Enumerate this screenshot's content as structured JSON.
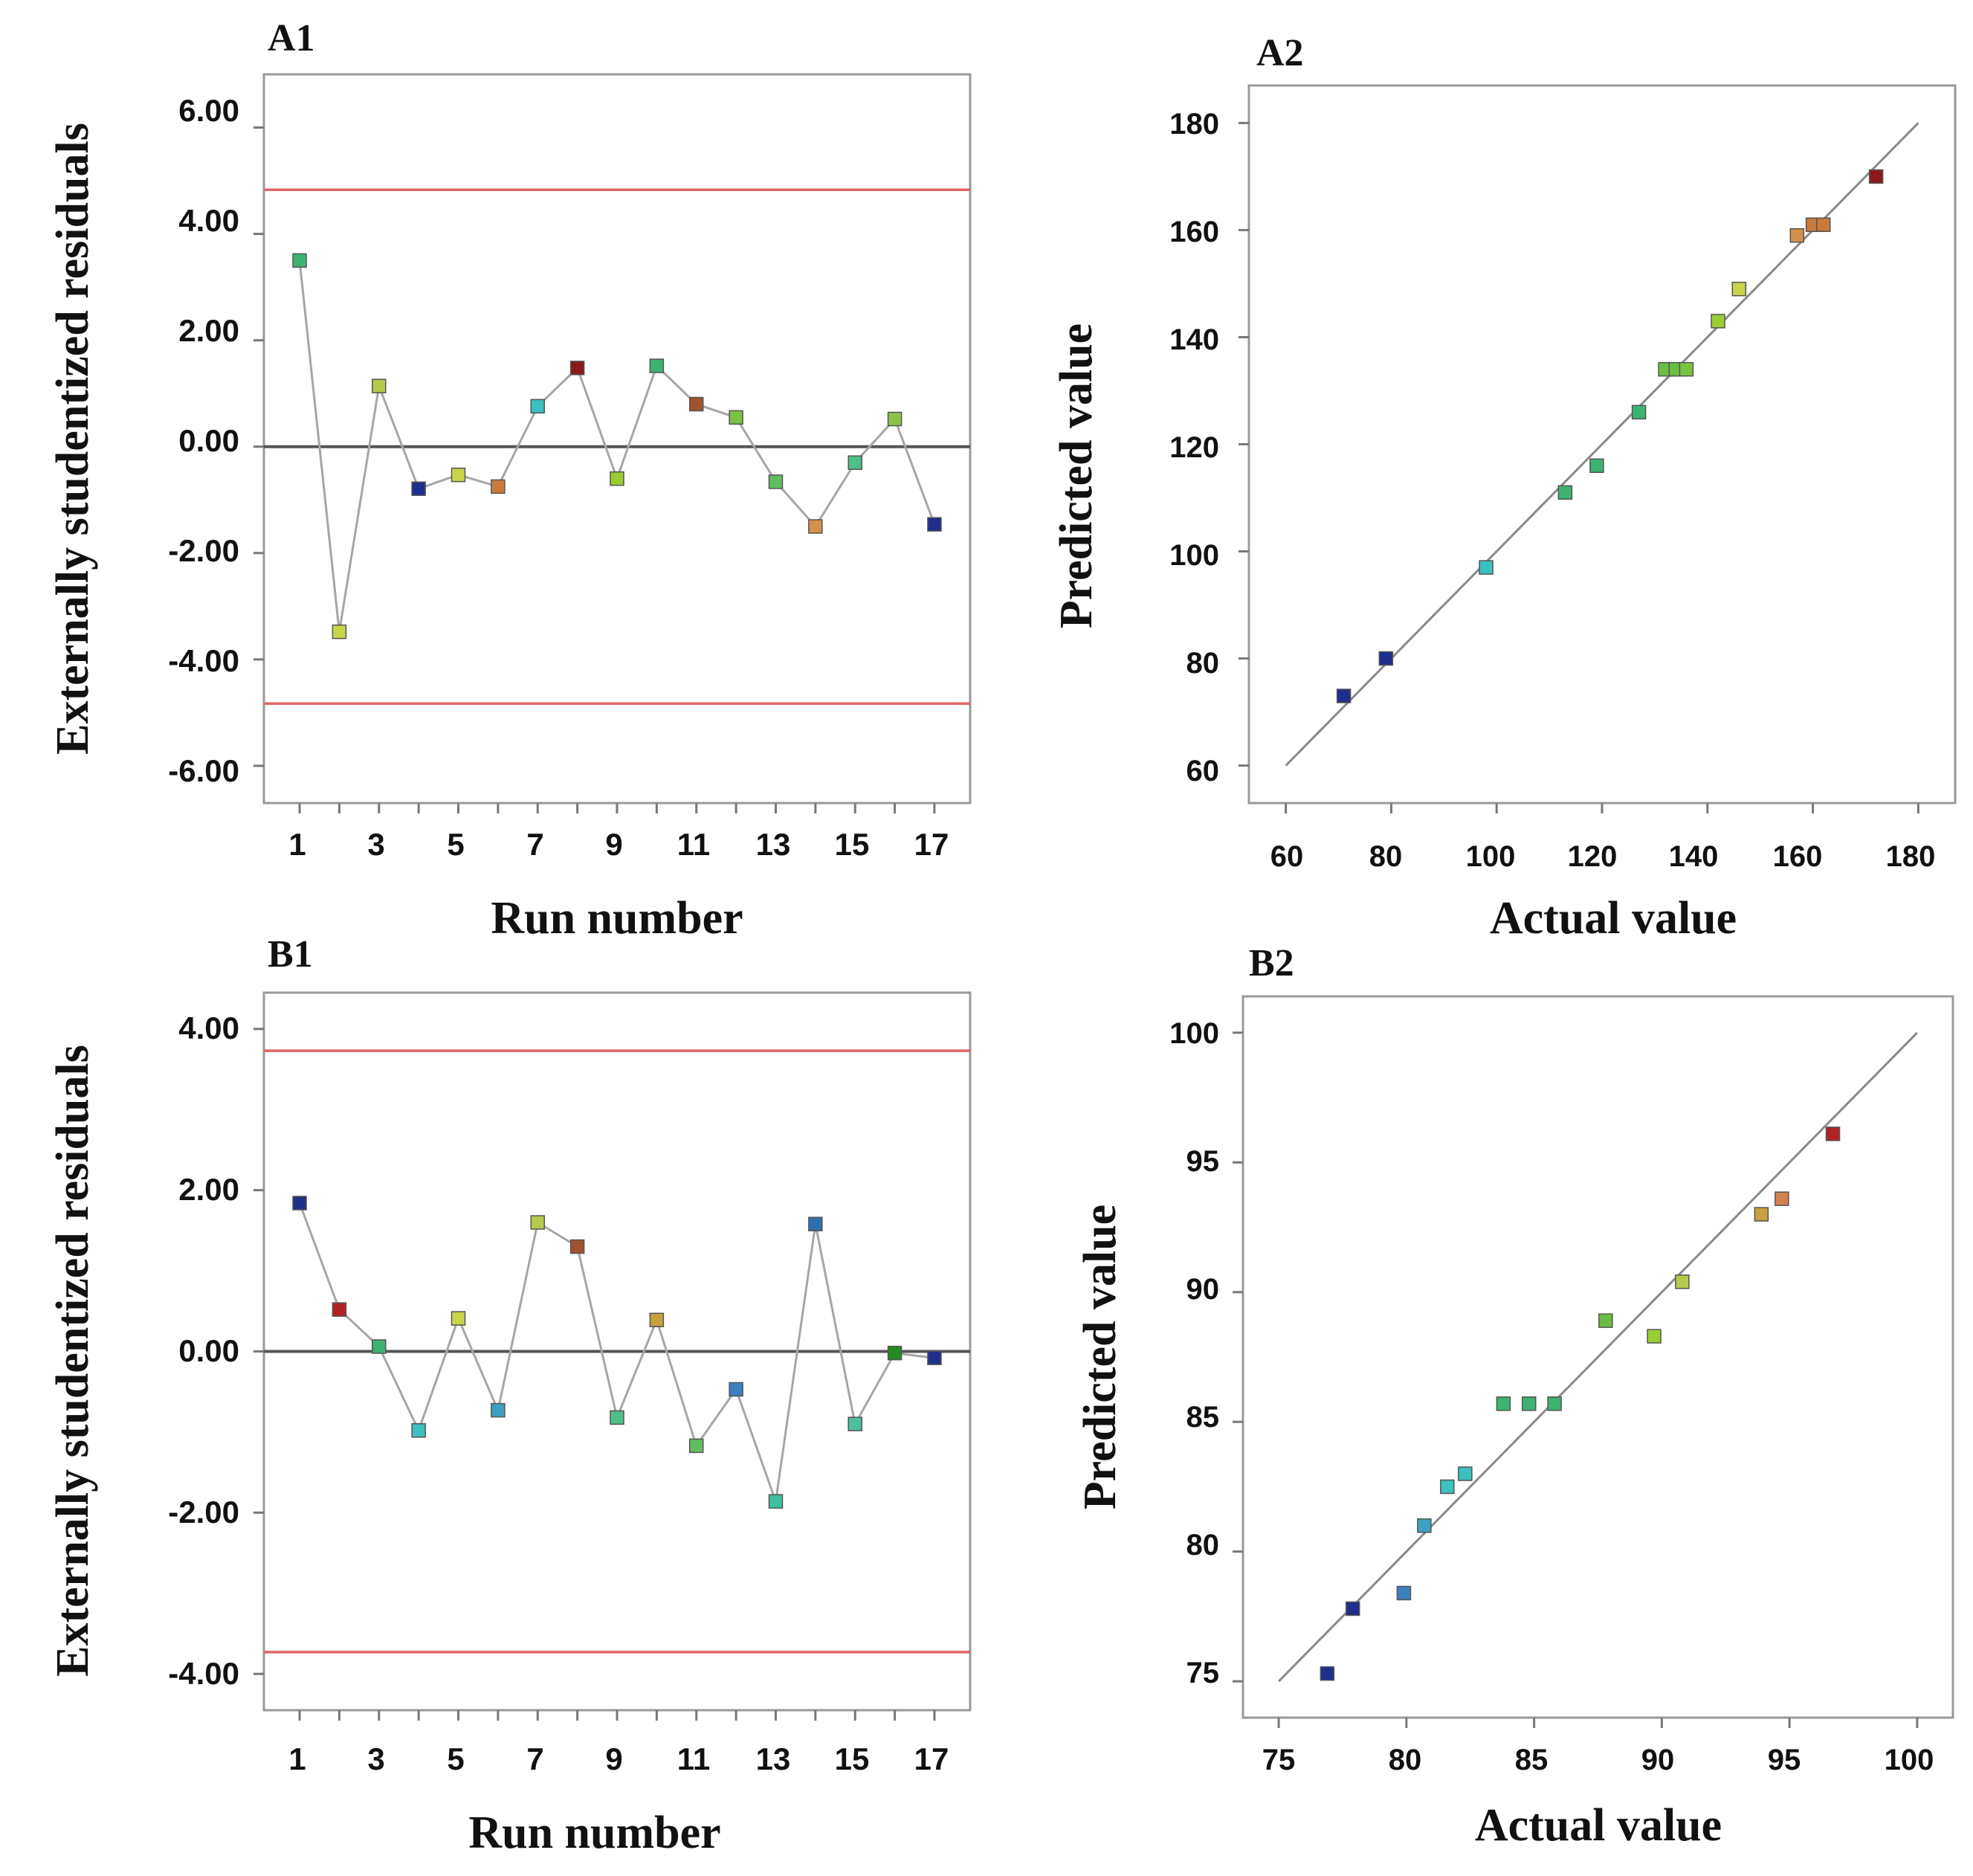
{
  "chart_data": [
    {
      "id": "A1",
      "panel_label": "A1",
      "type": "line",
      "xlabel": "Run number",
      "ylabel": "Externally studentized residuals",
      "x_tick_labels": [
        "1",
        "3",
        "5",
        "7",
        "9",
        "11",
        "13",
        "15",
        "17"
      ],
      "y_tick_labels": [
        "6.00",
        "4.00",
        "2.00",
        "0.00",
        "-2.00",
        "-4.00",
        "-6.00"
      ],
      "y_ticks": [
        6,
        4,
        2,
        0,
        -2,
        -4,
        -6
      ],
      "xlim": [
        0.1,
        17.9
      ],
      "ylim": [
        -6.7,
        7.0
      ],
      "reference_lines": [
        {
          "y": 4.83,
          "color": "#e06666"
        },
        {
          "y": -4.83,
          "color": "#e06666"
        },
        {
          "y": 0,
          "color": "#555555"
        }
      ],
      "line_color": "#a6a6a6",
      "x": [
        1,
        2,
        3,
        4,
        5,
        6,
        7,
        8,
        9,
        10,
        11,
        12,
        13,
        14,
        15,
        16,
        17
      ],
      "y": [
        3.5,
        -3.48,
        1.14,
        -0.79,
        -0.53,
        -0.75,
        0.76,
        1.48,
        -0.6,
        1.52,
        0.8,
        0.55,
        -0.66,
        -1.5,
        -0.3,
        0.52,
        -1.46
      ],
      "point_colors": [
        "#3cb371",
        "#c8d44a",
        "#b7c94a",
        "#1f2f8c",
        "#c8d44a",
        "#c87a3c",
        "#3cc0c0",
        "#8b1a1a",
        "#9acd32",
        "#3cb371",
        "#a0522d",
        "#7cc242",
        "#5fbf5f",
        "#d4914a",
        "#4fbf8a",
        "#8bc34a",
        "#1f2f8c"
      ]
    },
    {
      "id": "A2",
      "panel_label": "A2",
      "type": "scatter",
      "xlabel": "Actual value",
      "ylabel": "Predicted value",
      "x_tick_labels": [
        "60",
        "80",
        "100",
        "120",
        "140",
        "160",
        "180"
      ],
      "x_ticks": [
        60,
        80,
        100,
        120,
        140,
        160,
        180
      ],
      "y_tick_labels": [
        "180",
        "160",
        "140",
        "120",
        "100",
        "80",
        "60"
      ],
      "y_ticks": [
        180,
        160,
        140,
        120,
        100,
        80,
        60
      ],
      "xlim": [
        53,
        187
      ],
      "ylim": [
        53,
        187
      ],
      "diagonal": [
        [
          60,
          60
        ],
        [
          180,
          180
        ]
      ],
      "x": [
        71,
        79,
        98,
        113,
        119,
        127,
        132,
        134,
        136,
        142,
        146,
        157,
        160,
        162,
        172
      ],
      "y": [
        73,
        80,
        97,
        111,
        116,
        126,
        134,
        134,
        134,
        143,
        149,
        159,
        161,
        161,
        170
      ],
      "point_colors": [
        "#1f2f8c",
        "#1f2f8c",
        "#3cc0c0",
        "#3cb371",
        "#3cb371",
        "#3cb371",
        "#6abf40",
        "#6abf40",
        "#7cc242",
        "#9acd32",
        "#c8d44a",
        "#d4914a",
        "#c87a3c",
        "#c87a3c",
        "#8b1a1a"
      ]
    },
    {
      "id": "B1",
      "panel_label": "B1",
      "type": "line",
      "xlabel": "Run number",
      "ylabel": "Externally studentized residuals",
      "x_tick_labels": [
        "1",
        "3",
        "5",
        "7",
        "9",
        "11",
        "13",
        "15",
        "17"
      ],
      "y_tick_labels": [
        "4.00",
        "2.00",
        "0.00",
        "-2.00",
        "-4.00"
      ],
      "y_ticks": [
        4,
        2,
        0,
        -2,
        -4
      ],
      "xlim": [
        0.1,
        17.9
      ],
      "ylim": [
        -4.45,
        4.45
      ],
      "reference_lines": [
        {
          "y": 3.73,
          "color": "#e06666"
        },
        {
          "y": -3.73,
          "color": "#e06666"
        },
        {
          "y": 0,
          "color": "#555555"
        }
      ],
      "line_color": "#a6a6a6",
      "x": [
        1,
        2,
        3,
        4,
        5,
        6,
        7,
        8,
        9,
        10,
        11,
        12,
        13,
        14,
        15,
        16,
        17
      ],
      "y": [
        1.84,
        0.52,
        0.06,
        -0.98,
        0.41,
        -0.73,
        1.6,
        1.3,
        -0.82,
        0.39,
        -1.17,
        -0.47,
        -1.86,
        1.58,
        -0.9,
        -0.02,
        -0.08
      ],
      "point_colors": [
        "#1f2f8c",
        "#b22222",
        "#3cb371",
        "#3cc0c0",
        "#c8d44a",
        "#3ca0c0",
        "#b7c94a",
        "#a0522d",
        "#4fbf8a",
        "#c8a040",
        "#5fbf5f",
        "#3c80c0",
        "#3cc0a0",
        "#2a6fb0",
        "#4fbfa0",
        "#228b22",
        "#1f2f8c"
      ]
    },
    {
      "id": "B2",
      "panel_label": "B2",
      "type": "scatter",
      "xlabel": "Actual value",
      "ylabel": "Predicted value",
      "x_tick_labels": [
        "75",
        "80",
        "85",
        "90",
        "95",
        "100"
      ],
      "x_ticks": [
        75,
        80,
        85,
        90,
        95,
        100
      ],
      "y_tick_labels": [
        "100",
        "95",
        "90",
        "85",
        "80",
        "75"
      ],
      "y_ticks": [
        100,
        95,
        90,
        85,
        80,
        75
      ],
      "xlim": [
        73.6,
        101.4
      ],
      "ylim": [
        73.6,
        101.4
      ],
      "diagonal": [
        [
          75,
          75
        ],
        [
          100,
          100
        ]
      ],
      "x": [
        76.9,
        77.9,
        79.9,
        80.7,
        81.6,
        82.3,
        83.8,
        84.8,
        85.8,
        87.8,
        89.7,
        90.8,
        93.9,
        94.7,
        96.7
      ],
      "y": [
        75.3,
        77.8,
        78.4,
        81.0,
        82.5,
        83.0,
        85.7,
        85.7,
        85.7,
        88.9,
        88.3,
        90.4,
        93.0,
        93.6,
        96.1
      ],
      "point_colors": [
        "#1f2f8c",
        "#1f2f8c",
        "#3c80c0",
        "#3ca0c0",
        "#3cc0c0",
        "#3cc0c0",
        "#3cb371",
        "#3cb371",
        "#3cb371",
        "#6abf40",
        "#9acd32",
        "#b7c94a",
        "#c8a040",
        "#d4804a",
        "#b22222"
      ]
    }
  ]
}
